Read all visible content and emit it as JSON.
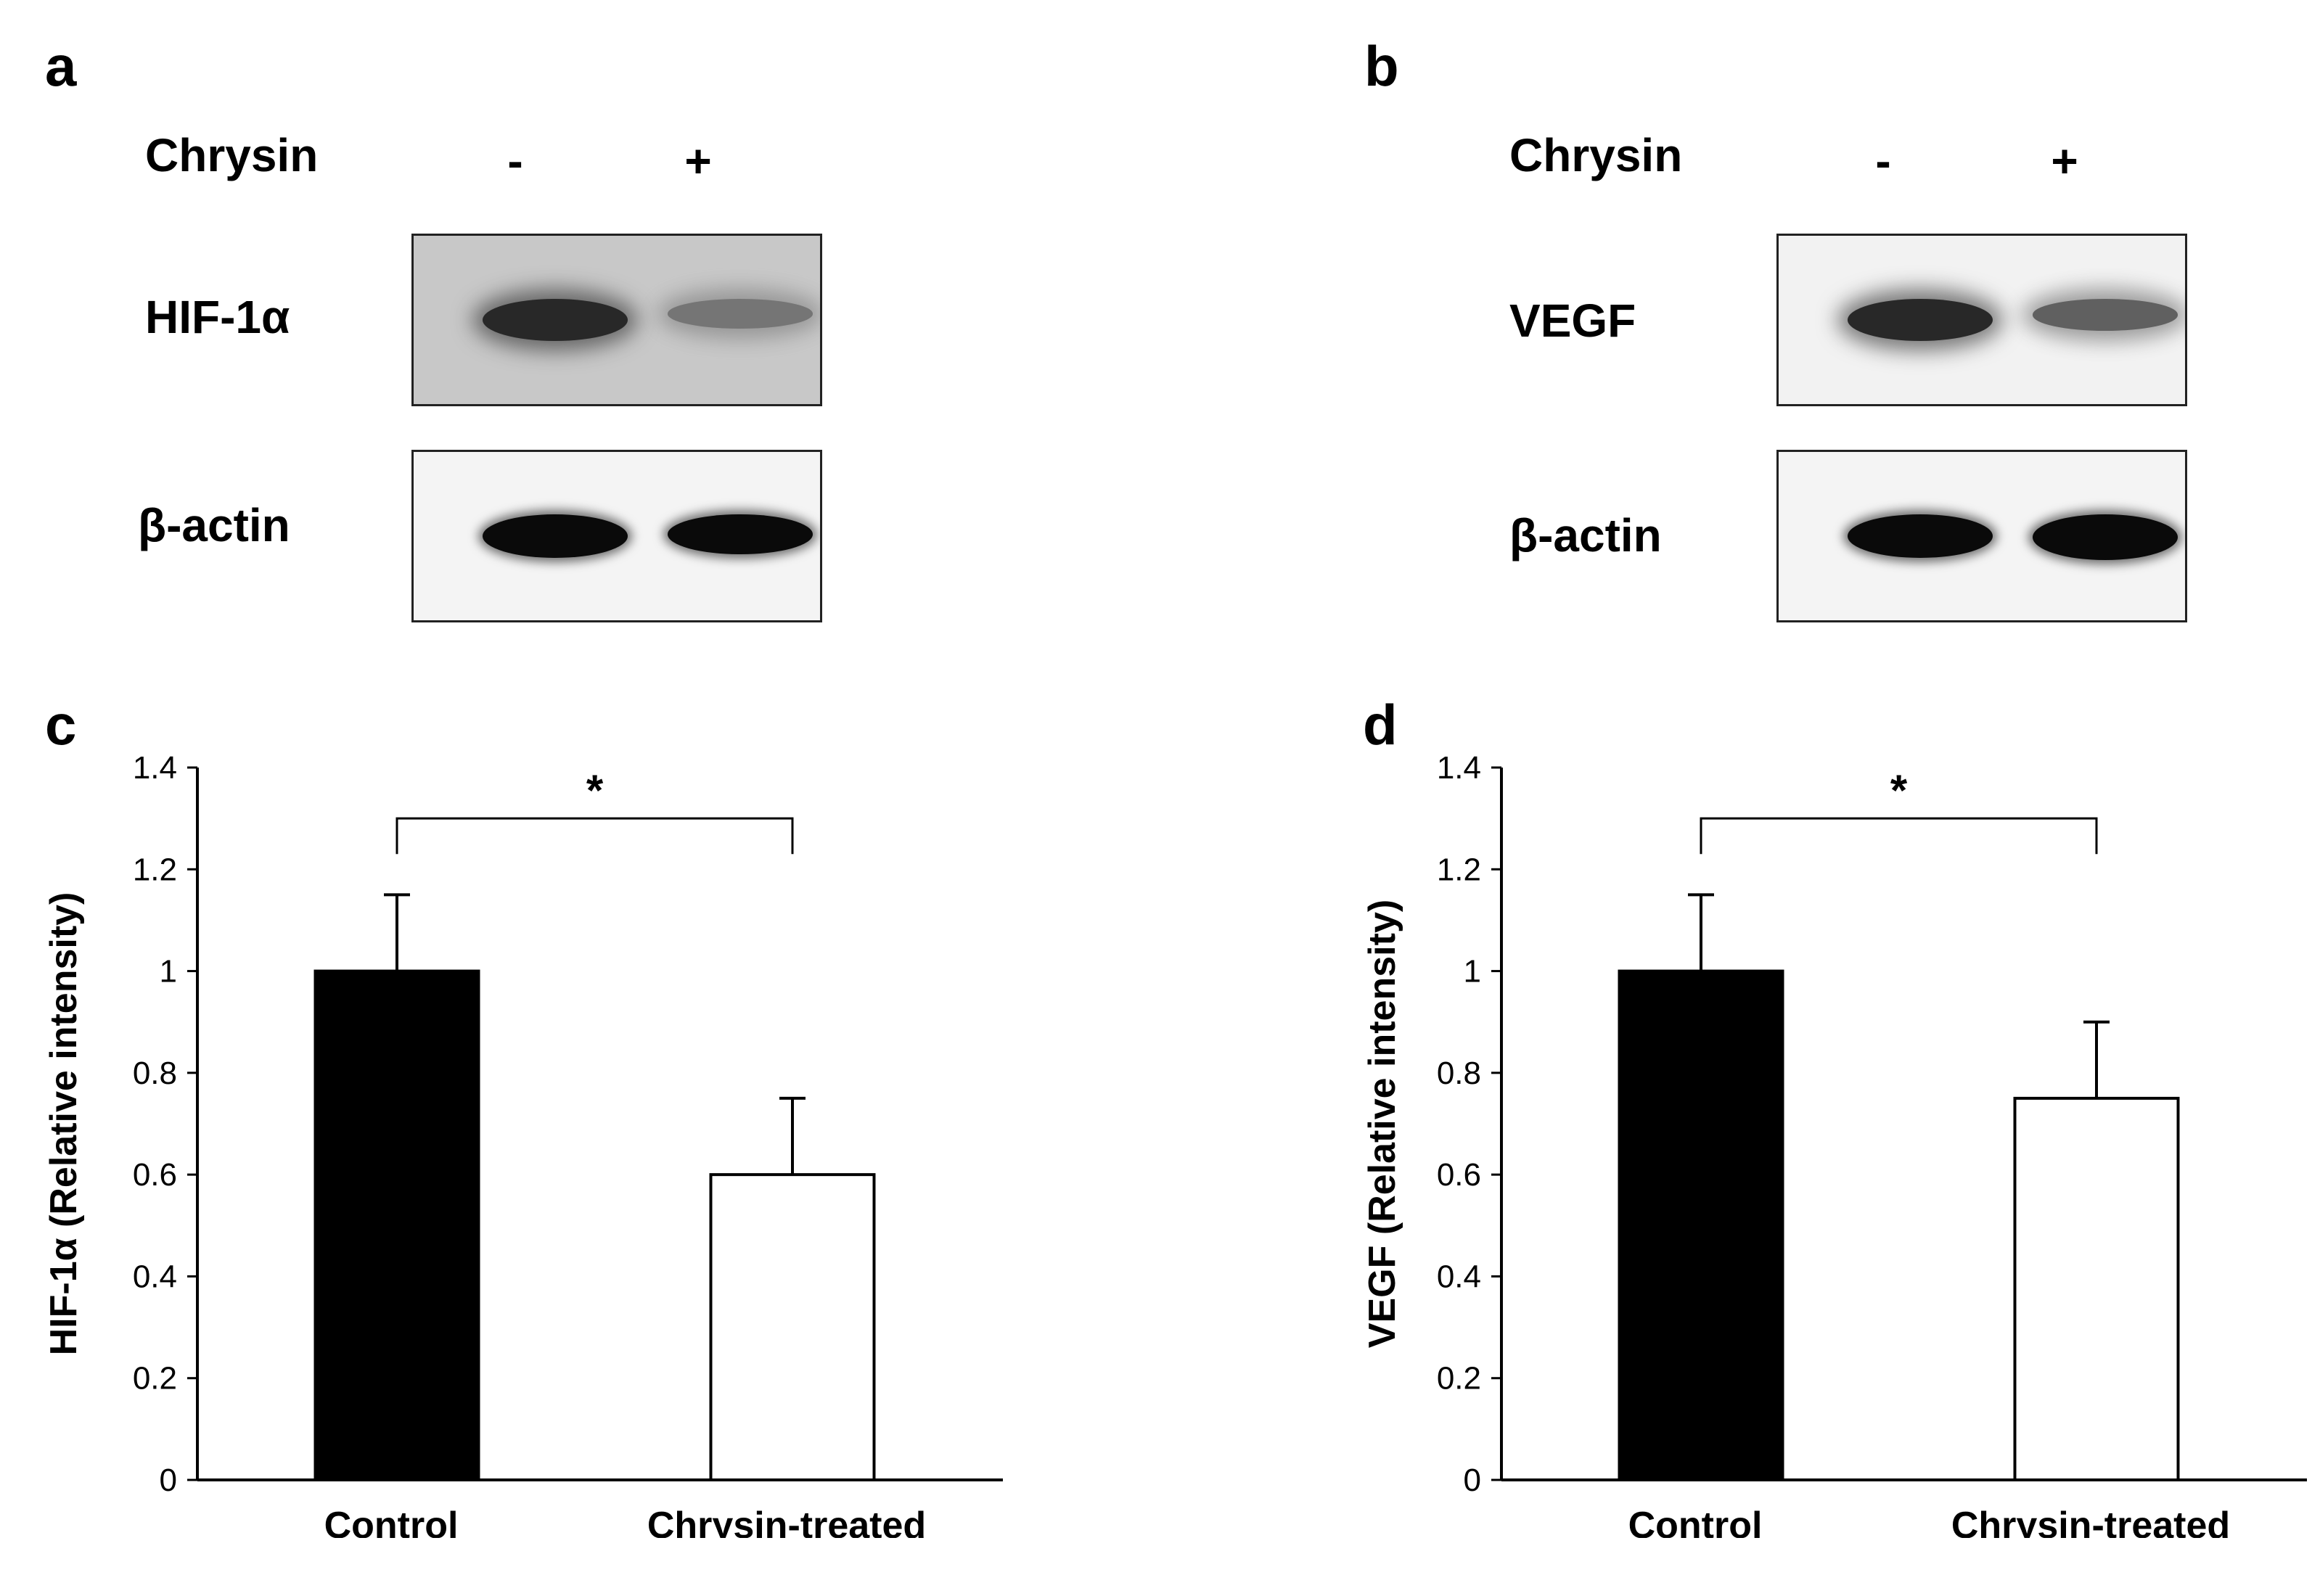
{
  "panels": {
    "a": {
      "letter": "a",
      "treatment_label": "Chrysin",
      "lanes": [
        "-",
        "+"
      ],
      "target_label": "HIF-1α",
      "loading_label": "β-actin",
      "target_band_levels": [
        1.0,
        0.6
      ],
      "loading_band_levels": [
        1.0,
        0.92
      ],
      "target_background": "#c8c8c8",
      "loading_background": "#f4f4f4"
    },
    "b": {
      "letter": "b",
      "treatment_label": "Chrysin",
      "lanes": [
        "-",
        "+"
      ],
      "target_label": "VEGF",
      "loading_label": "β-actin",
      "target_band_levels": [
        1.0,
        0.75
      ],
      "loading_band_levels": [
        1.0,
        1.05
      ],
      "target_background": "#f2f2f2",
      "loading_background": "#f4f4f4"
    },
    "c": {
      "letter": "c"
    },
    "d": {
      "letter": "d"
    }
  },
  "chart_data": [
    {
      "panel": "c",
      "type": "bar",
      "categories": [
        "Control",
        "Chrysin-treated"
      ],
      "values": [
        1.0,
        0.6
      ],
      "error_bars": [
        0.15,
        0.15
      ],
      "bar_colors": [
        "#000000",
        "#ffffff"
      ],
      "ylabel": "HIF-1α (Relative intensity)",
      "ylim": [
        0,
        1.4
      ],
      "yticks": [
        "0",
        "0.2",
        "0.4",
        "0.6",
        "0.8",
        "1",
        "1.2",
        "1.4"
      ],
      "significance": "*",
      "significance_bracket_y": 1.3,
      "significance_bracket_bottom": 1.23
    },
    {
      "panel": "d",
      "type": "bar",
      "categories": [
        "Control",
        "Chrysin-treated"
      ],
      "values": [
        1.0,
        0.75
      ],
      "error_bars": [
        0.15,
        0.15
      ],
      "bar_colors": [
        "#000000",
        "#ffffff"
      ],
      "ylabel": "VEGF (Relative intensity)",
      "ylim": [
        0,
        1.4
      ],
      "yticks": [
        "0",
        "0.2",
        "0.4",
        "0.6",
        "0.8",
        "1",
        "1.2",
        "1.4"
      ],
      "significance": "*",
      "significance_bracket_y": 1.3,
      "significance_bracket_bottom": 1.23
    }
  ]
}
